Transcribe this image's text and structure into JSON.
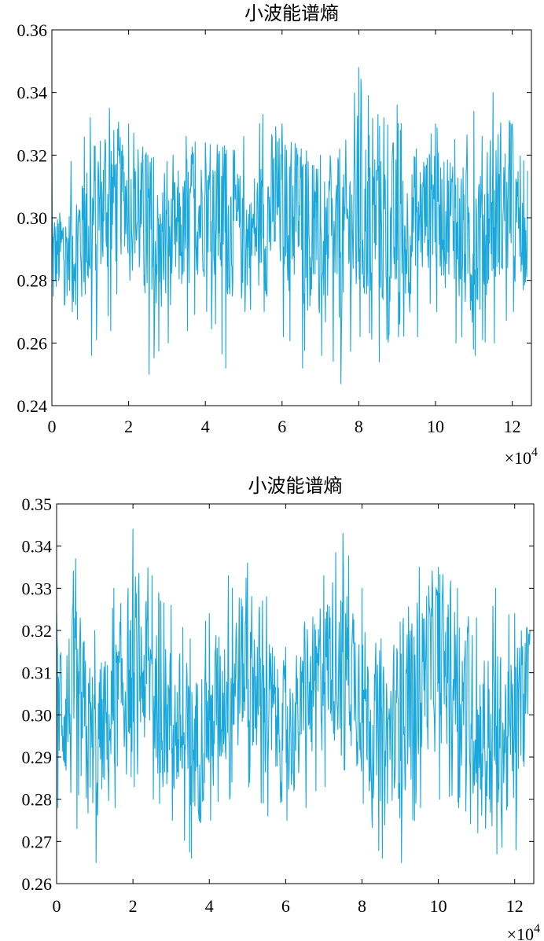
{
  "chart_data": [
    {
      "type": "line",
      "title": "小波能谱熵",
      "x_multiplier": "×10",
      "x_multiplier_exp": "4",
      "xlim": [
        0,
        12.5
      ],
      "ylim": [
        0.24,
        0.36
      ],
      "xticks": [
        0,
        2,
        4,
        6,
        8,
        10,
        12
      ],
      "xtick_labels": [
        "0",
        "2",
        "4",
        "6",
        "8",
        "10",
        "12"
      ],
      "yticks": [
        0.24,
        0.26,
        0.28,
        0.3,
        0.32,
        0.34,
        0.36
      ],
      "ytick_labels": [
        "0.24",
        "0.26",
        "0.28",
        "0.30",
        "0.32",
        "0.34",
        "0.36"
      ],
      "color": "#1aa7dc",
      "series": [
        {
          "x": [
            0,
            0.5,
            1,
            1.5,
            2,
            2.5,
            3,
            3.5,
            4,
            4.5,
            5,
            5.5,
            6,
            6.5,
            7,
            7.5,
            8,
            8.5,
            9,
            9.5,
            10,
            10.5,
            11,
            11.5,
            12,
            12.4
          ],
          "y": [
            0.287,
            0.29,
            0.298,
            0.308,
            0.306,
            0.294,
            0.29,
            0.297,
            0.305,
            0.3,
            0.292,
            0.298,
            0.306,
            0.3,
            0.288,
            0.29,
            0.302,
            0.3,
            0.291,
            0.3,
            0.306,
            0.298,
            0.292,
            0.304,
            0.302,
            0.288
          ],
          "min": [
            0.275,
            0.27,
            0.256,
            0.264,
            0.28,
            0.25,
            0.26,
            0.264,
            0.27,
            0.252,
            0.27,
            0.27,
            0.262,
            0.252,
            0.256,
            0.247,
            0.262,
            0.254,
            0.262,
            0.262,
            0.27,
            0.26,
            0.256,
            0.26,
            0.27,
            0.279
          ],
          "max": [
            0.32,
            0.318,
            0.332,
            0.335,
            0.33,
            0.32,
            0.318,
            0.326,
            0.324,
            0.323,
            0.326,
            0.333,
            0.33,
            0.322,
            0.32,
            0.322,
            0.348,
            0.333,
            0.336,
            0.322,
            0.33,
            0.325,
            0.334,
            0.34,
            0.33,
            0.315
          ]
        }
      ]
    },
    {
      "type": "line",
      "title": "小波能谱熵",
      "x_multiplier": "×10",
      "x_multiplier_exp": "4",
      "xlim": [
        0,
        12.5
      ],
      "ylim": [
        0.26,
        0.35
      ],
      "xticks": [
        0,
        2,
        4,
        6,
        8,
        10,
        12
      ],
      "xtick_labels": [
        "0",
        "2",
        "4",
        "6",
        "8",
        "10",
        "12"
      ],
      "yticks": [
        0.26,
        0.27,
        0.28,
        0.29,
        0.3,
        0.31,
        0.32,
        0.33,
        0.34,
        0.35
      ],
      "ytick_labels": [
        "0.26",
        "0.27",
        "0.28",
        "0.29",
        "0.30",
        "0.31",
        "0.32",
        "0.33",
        "0.34",
        "0.35"
      ],
      "color": "#1aa7dc",
      "series": [
        {
          "x": [
            0,
            0.5,
            1,
            1.5,
            2,
            2.5,
            3,
            3.5,
            4,
            4.5,
            5,
            5.5,
            6,
            6.5,
            7,
            7.5,
            8,
            8.5,
            9,
            9.5,
            10,
            10.5,
            11,
            11.5,
            12,
            12.4
          ],
          "y": [
            0.305,
            0.3,
            0.292,
            0.3,
            0.312,
            0.308,
            0.298,
            0.292,
            0.298,
            0.308,
            0.312,
            0.302,
            0.295,
            0.3,
            0.312,
            0.316,
            0.305,
            0.292,
            0.298,
            0.31,
            0.314,
            0.308,
            0.298,
            0.292,
            0.296,
            0.305
          ],
          "min": [
            0.278,
            0.273,
            0.265,
            0.278,
            0.283,
            0.28,
            0.275,
            0.266,
            0.275,
            0.28,
            0.283,
            0.276,
            0.275,
            0.278,
            0.283,
            0.287,
            0.279,
            0.266,
            0.265,
            0.278,
            0.28,
            0.278,
            0.272,
            0.267,
            0.268,
            0.275
          ],
          "max": [
            0.324,
            0.337,
            0.32,
            0.33,
            0.344,
            0.333,
            0.326,
            0.318,
            0.324,
            0.333,
            0.336,
            0.328,
            0.316,
            0.322,
            0.333,
            0.343,
            0.33,
            0.318,
            0.322,
            0.335,
            0.335,
            0.33,
            0.323,
            0.33,
            0.324,
            0.32
          ]
        }
      ]
    }
  ]
}
